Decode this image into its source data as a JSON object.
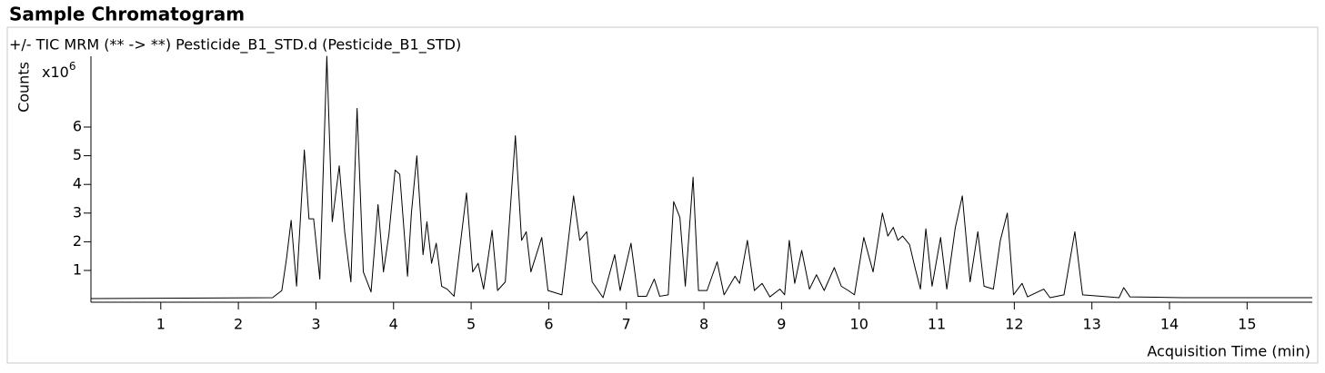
{
  "chart_data": {
    "type": "line",
    "title": "Sample Chromatogram",
    "subtitle": "+/- TIC MRM (** -> **) Pesticide_B1_STD.d (Pesticide_B1_STD)",
    "ylabel": "Counts",
    "y_scale_base": "x10",
    "y_scale_exponent": "6",
    "xlabel": "Acquisition Time (min)",
    "color": "#000000",
    "xlim": [
      0.1,
      15.84
    ],
    "ylim": [
      0,
      8.5
    ],
    "xticks": [
      1,
      2,
      3,
      4,
      5,
      6,
      7,
      8,
      9,
      10,
      11,
      12,
      13,
      14,
      15
    ],
    "yticks": [
      1,
      2,
      3,
      4,
      5,
      6
    ],
    "x": [
      0.1,
      2.44,
      2.56,
      2.62,
      2.68,
      2.75,
      2.85,
      2.91,
      2.97,
      3.05,
      3.14,
      3.21,
      3.3,
      3.37,
      3.45,
      3.53,
      3.61,
      3.71,
      3.8,
      3.87,
      3.94,
      4.02,
      4.08,
      4.18,
      4.23,
      4.3,
      4.38,
      4.43,
      4.49,
      4.55,
      4.62,
      4.69,
      4.78,
      4.94,
      5.02,
      5.09,
      5.16,
      5.27,
      5.34,
      5.44,
      5.57,
      5.65,
      5.71,
      5.77,
      5.91,
      5.99,
      6.17,
      6.32,
      6.4,
      6.49,
      6.56,
      6.7,
      6.85,
      6.92,
      7.06,
      7.15,
      7.26,
      7.36,
      7.43,
      7.54,
      7.61,
      7.69,
      7.76,
      7.86,
      7.93,
      8.04,
      8.17,
      8.26,
      8.4,
      8.46,
      8.56,
      8.65,
      8.75,
      8.85,
      8.98,
      9.04,
      9.1,
      9.17,
      9.26,
      9.36,
      9.45,
      9.55,
      9.68,
      9.77,
      9.86,
      9.94,
      10.06,
      10.18,
      10.3,
      10.37,
      10.44,
      10.5,
      10.56,
      10.65,
      10.72,
      10.79,
      10.86,
      10.94,
      11.05,
      11.13,
      11.24,
      11.33,
      11.43,
      11.53,
      11.61,
      11.73,
      11.82,
      11.91,
      11.99,
      12.1,
      12.17,
      12.38,
      12.46,
      12.64,
      12.78,
      12.88,
      13.35,
      13.41,
      13.49,
      14.16,
      15.84
    ],
    "values": [
      0.02,
      0.05,
      0.3,
      1.4,
      2.75,
      0.45,
      5.2,
      2.8,
      2.8,
      0.7,
      8.47,
      2.7,
      4.65,
      2.35,
      0.6,
      6.65,
      0.95,
      0.25,
      3.3,
      0.95,
      2.25,
      4.5,
      4.35,
      0.8,
      3.0,
      5.0,
      1.55,
      2.7,
      1.25,
      1.95,
      0.45,
      0.35,
      0.1,
      3.7,
      0.95,
      1.25,
      0.35,
      2.4,
      0.3,
      0.6,
      5.7,
      2.05,
      2.35,
      0.95,
      2.15,
      0.3,
      0.15,
      3.6,
      2.05,
      2.35,
      0.6,
      0.05,
      1.55,
      0.3,
      1.95,
      0.1,
      0.1,
      0.7,
      0.1,
      0.15,
      3.4,
      2.85,
      0.45,
      4.25,
      0.3,
      0.3,
      1.3,
      0.15,
      0.8,
      0.55,
      2.05,
      0.3,
      0.55,
      0.08,
      0.35,
      0.15,
      2.05,
      0.55,
      1.7,
      0.35,
      0.85,
      0.3,
      1.1,
      0.45,
      0.3,
      0.15,
      2.15,
      0.95,
      3.0,
      2.2,
      2.5,
      2.05,
      2.2,
      1.9,
      1.1,
      0.35,
      2.45,
      0.45,
      2.15,
      0.35,
      2.5,
      3.6,
      0.6,
      2.35,
      0.45,
      0.35,
      2.05,
      3.0,
      0.15,
      0.55,
      0.08,
      0.35,
      0.05,
      0.15,
      2.35,
      0.15,
      0.05,
      0.4,
      0.08,
      0.05,
      0.05
    ]
  }
}
